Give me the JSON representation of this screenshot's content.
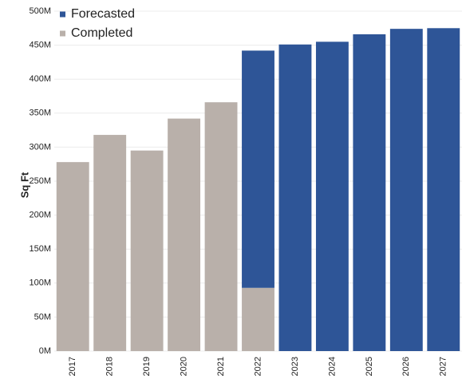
{
  "chart_data": {
    "type": "stacked-bar",
    "y_label": "Sq Ft",
    "categories": [
      "2017",
      "2018",
      "2019",
      "2020",
      "2021",
      "2022",
      "2023",
      "2024",
      "2025",
      "2026",
      "2027"
    ],
    "series": [
      {
        "name": "Completed",
        "color": "#b9b0aa",
        "values": [
          278000000,
          318000000,
          295000000,
          342000000,
          366000000,
          93000000,
          null,
          null,
          null,
          null,
          null
        ]
      },
      {
        "name": "Forecasted",
        "color": "#2e5597",
        "values": [
          null,
          null,
          null,
          null,
          null,
          349000000,
          451000000,
          455000000,
          466000000,
          474000000,
          475000000
        ]
      }
    ],
    "ylim": [
      0,
      500000000
    ],
    "yticks": [
      {
        "value": 0,
        "label": "0M"
      },
      {
        "value": 50000000,
        "label": "50M"
      },
      {
        "value": 100000000,
        "label": "100M"
      },
      {
        "value": 150000000,
        "label": "150M"
      },
      {
        "value": 200000000,
        "label": "200M"
      },
      {
        "value": 250000000,
        "label": "250M"
      },
      {
        "value": 300000000,
        "label": "300M"
      },
      {
        "value": 350000000,
        "label": "350M"
      },
      {
        "value": 400000000,
        "label": "400M"
      },
      {
        "value": 450000000,
        "label": "450M"
      },
      {
        "value": 500000000,
        "label": "500M"
      }
    ],
    "grid": true,
    "legend": "top-left"
  }
}
